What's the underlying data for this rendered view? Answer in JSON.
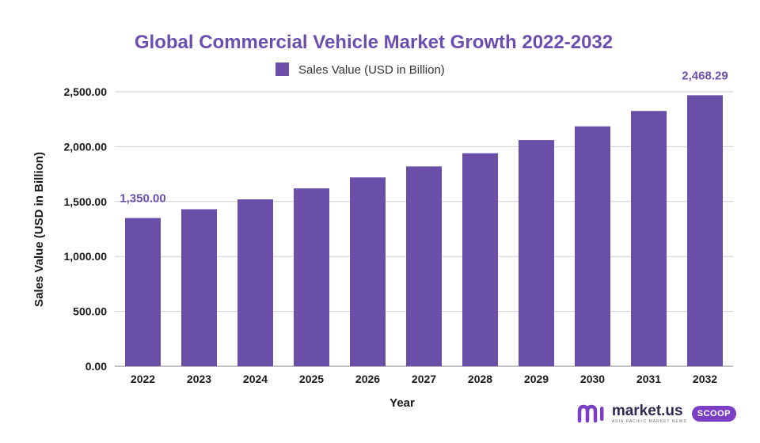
{
  "chart_data": {
    "type": "bar",
    "title": "Global Commercial Vehicle Market Growth 2022-2032",
    "xlabel": "Year",
    "ylabel": "Sales Value (USD in Billion)",
    "categories": [
      "2022",
      "2023",
      "2024",
      "2025",
      "2026",
      "2027",
      "2028",
      "2029",
      "2030",
      "2031",
      "2032"
    ],
    "series": [
      {
        "name": "Sales Value (USD in Billion)",
        "values": [
          1350.0,
          1430,
          1520,
          1620,
          1720,
          1820,
          1940,
          2060,
          2185,
          2325,
          2468.29
        ]
      }
    ],
    "data_labels": [
      {
        "category": "2022",
        "text": "1,350.00"
      },
      {
        "category": "2032",
        "text": "2,468.29"
      }
    ],
    "ylim": [
      0,
      2500
    ],
    "yticks": [
      0,
      500,
      1000,
      1500,
      2000,
      2500
    ],
    "ytick_labels": [
      "0.00",
      "500.00",
      "1,000.00",
      "1,500.00",
      "2,000.00",
      "2,500.00"
    ],
    "grid": true,
    "legend_position": "top-center",
    "bar_color": "#6a4fa8"
  },
  "branding": {
    "name": "market.us",
    "tagline": "ASIA-PACIFIC MARKET NEWS",
    "badge": "SCOOP"
  }
}
